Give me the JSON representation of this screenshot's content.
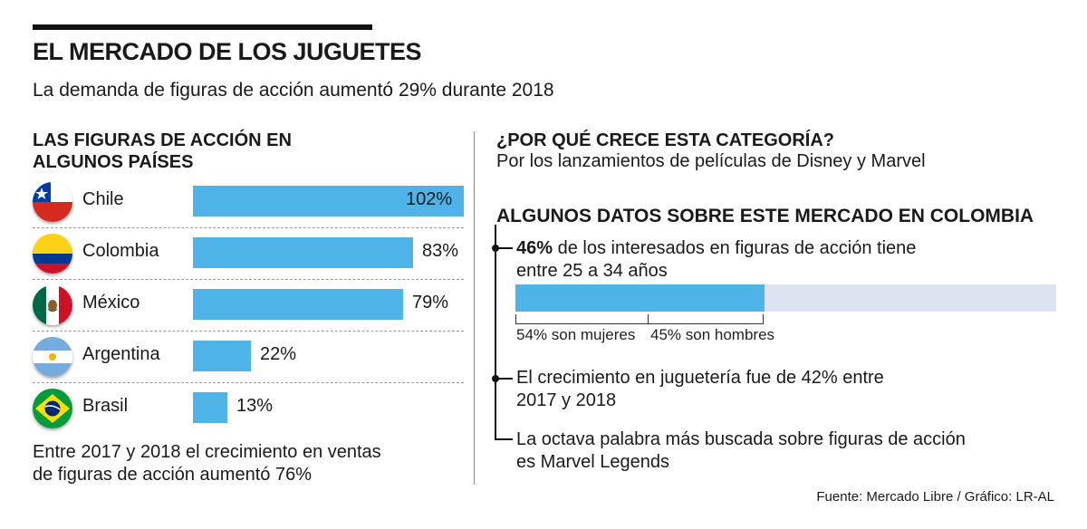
{
  "header": {
    "title": "EL MERCADO DE LOS JUGUETES",
    "subtitle": "La demanda de figuras de acción aumentó 29% durante 2018"
  },
  "left": {
    "heading_line1": "LAS FIGURAS DE ACCIÓN EN",
    "heading_line2": "ALGUNOS PAÍSES",
    "footnote_line1": "Entre 2017 y 2018 el crecimiento en ventas",
    "footnote_line2": "de figuras de acción aumentó 76%"
  },
  "chart_data": {
    "type": "bar",
    "orientation": "horizontal",
    "title": "LAS FIGURAS DE ACCIÓN EN ALGUNOS PAÍSES",
    "categories": [
      "Chile",
      "Colombia",
      "México",
      "Argentina",
      "Brasil"
    ],
    "values": [
      102,
      83,
      79,
      22,
      13
    ],
    "value_labels": [
      "102%",
      "83%",
      "79%",
      "22%",
      "13%"
    ],
    "xlim": [
      0,
      102
    ],
    "color": "#4eb3e6",
    "flags": [
      "chile-flag-icon",
      "colombia-flag-icon",
      "mexico-flag-icon",
      "argentina-flag-icon",
      "brazil-flag-icon"
    ]
  },
  "right": {
    "why_heading": "¿POR QUÉ CRECE ESTA CATEGORÍA?",
    "why_text": "Por los lanzamientos de películas de Disney y Marvel",
    "facts_heading": "ALGUNOS DATOS SOBRE ESTE MERCADO EN COLOMBIA",
    "fact1_strong": "46%",
    "fact1_rest": " de los interesados en figuras de acción tiene",
    "fact1_line2": "entre 25 a 34 años",
    "progress_value": 0.46,
    "split_women": "54% son mujeres",
    "split_men": "45% son hombres",
    "fact2_line1": "El crecimiento en juguetería fue de 42% entre",
    "fact2_line2": "2017 y 2018",
    "fact3_line1": "La octava palabra más buscada sobre figuras de acción",
    "fact3_line2": "es Marvel Legends"
  },
  "footer": {
    "source": "Fuente: Mercado Libre / Gráfico: LR-AL"
  },
  "colors": {
    "bar": "#4eb3e6",
    "track": "#dde3f1"
  }
}
